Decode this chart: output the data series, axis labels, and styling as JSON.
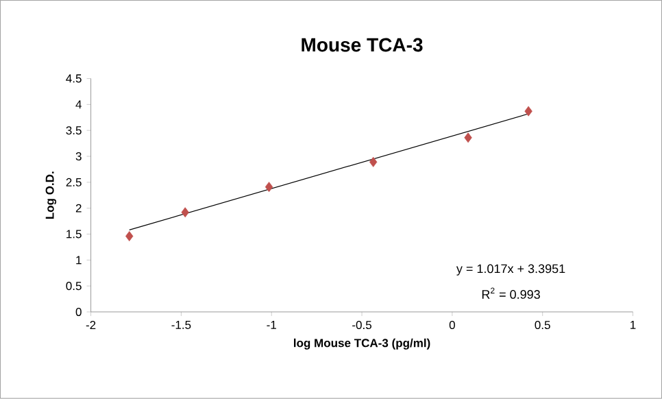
{
  "chart_data": {
    "type": "scatter",
    "title": "Mouse TCA-3",
    "xlabel": "log Mouse TCA-3 (pg/ml)",
    "ylabel": "Log O.D.",
    "xlim": [
      -2,
      1
    ],
    "xticks": [
      -2,
      -1.5,
      -1,
      -0.5,
      0,
      0.5,
      1
    ],
    "ylim": [
      0,
      4.5
    ],
    "yticks": [
      0,
      0.5,
      1,
      1.5,
      2,
      2.5,
      3,
      3.5,
      4,
      4.5
    ],
    "grid": false,
    "series": [
      {
        "marker": "diamond",
        "color": "#c0504d",
        "x": [
          -1.787,
          -1.478,
          -1.014,
          -0.437,
          0.088,
          0.422
        ],
        "values": [
          1.46,
          1.92,
          2.41,
          2.89,
          3.36,
          3.87
        ]
      },
      {
        "type": "line",
        "marker": "none",
        "line_style": "solid",
        "color": "#000000",
        "x": [
          -1.787,
          0.422
        ],
        "values": [
          1.58,
          3.82
        ]
      }
    ],
    "annotations": [
      "y = 1.017x + 3.3951",
      "R$^{2}$ = 0.993"
    ]
  }
}
